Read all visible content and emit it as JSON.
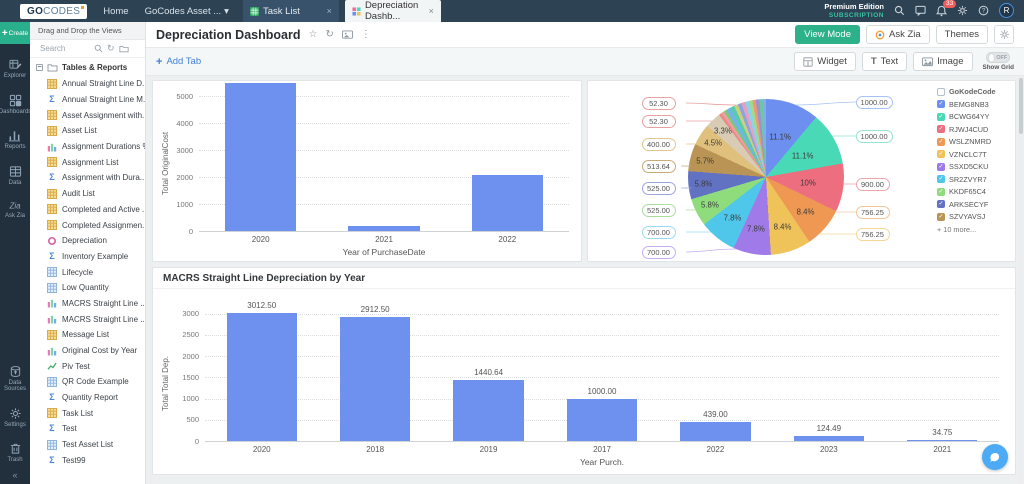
{
  "icons": {
    "caret_down": "▾",
    "close": "×",
    "star": "☆",
    "refresh": "↻",
    "kebab": "⋮",
    "plus": "+",
    "check": "✓",
    "collapse": "«",
    "minus": "−",
    "question": "?",
    "text_t": "T"
  },
  "navbar": {
    "logo_go": "GO",
    "logo_codes": "CODES",
    "menu_home": "Home",
    "menu_workspace": "GoCodes Asset ...",
    "tab_task": "Task List",
    "tab_active": "Depreciation Dashb...",
    "premium_line1": "Premium Edition",
    "premium_line2": "SUBSCRIPTION",
    "badge_count": "33",
    "avatar_initial": "R"
  },
  "rail": {
    "create": "Create",
    "items": [
      {
        "label": "Explorer"
      },
      {
        "label": "Dashboards"
      },
      {
        "label": "Reports"
      },
      {
        "label": "Data"
      },
      {
        "label": "Ask Zia"
      }
    ],
    "bottom_items": [
      {
        "label": "Data Sources"
      },
      {
        "label": "Settings"
      },
      {
        "label": "Trash"
      }
    ]
  },
  "sidebar": {
    "header": "Drag and Drop the Views",
    "search_placeholder": "Search",
    "root": "Tables & Reports",
    "items": [
      {
        "label": "Annual Straight Line D...",
        "icon": "table-yellow"
      },
      {
        "label": "Annual Straight Line M...",
        "icon": "summary"
      },
      {
        "label": "Asset Assignment with...",
        "icon": "table-yellow"
      },
      {
        "label": "Asset List",
        "icon": "table-yellow"
      },
      {
        "label": "Assignment Durations %",
        "icon": "chart"
      },
      {
        "label": "Assignment List",
        "icon": "table-yellow"
      },
      {
        "label": "Assignment with Dura...",
        "icon": "summary"
      },
      {
        "label": "Audit List",
        "icon": "table-yellow"
      },
      {
        "label": "Completed and Active ...",
        "icon": "table-yellow"
      },
      {
        "label": "Completed Assignmen...",
        "icon": "table-yellow"
      },
      {
        "label": "Depreciation",
        "icon": "pivot"
      },
      {
        "label": "Inventory Example",
        "icon": "summary"
      },
      {
        "label": "Lifecycle",
        "icon": "table-blue"
      },
      {
        "label": "Low Quantity",
        "icon": "table-blue"
      },
      {
        "label": "MACRS Straight Line ...",
        "icon": "chart"
      },
      {
        "label": "MACRS Straight Line ...",
        "icon": "chart"
      },
      {
        "label": "Message List",
        "icon": "table-yellow"
      },
      {
        "label": "Original Cost by Year",
        "icon": "chart"
      },
      {
        "label": "Piv Test",
        "icon": "line"
      },
      {
        "label": "QR Code Example",
        "icon": "table-blue"
      },
      {
        "label": "Quantity Report",
        "icon": "summary"
      },
      {
        "label": "Task List",
        "icon": "table-yellow"
      },
      {
        "label": "Test",
        "icon": "summary"
      },
      {
        "label": "Test Asset List",
        "icon": "table-blue"
      },
      {
        "label": "Test99",
        "icon": "summary"
      }
    ]
  },
  "header": {
    "title": "Depreciation Dashboard",
    "btn_view_mode": "View Mode",
    "btn_ask_zia": "Ask Zia",
    "btn_themes": "Themes",
    "add_tab": "Add Tab",
    "btn_widget": "Widget",
    "btn_text": "Text",
    "btn_image": "Image",
    "toggle_state": "OFF",
    "toggle_label": "Show Grid"
  },
  "chart_data": [
    {
      "type": "bar",
      "name": "original-cost-by-year",
      "categories": [
        "2020",
        "2021",
        "2022"
      ],
      "values": [
        5500,
        190,
        2080
      ],
      "xlabel": "Year of PurchaseDate",
      "ylabel": "Total OriginalCost",
      "yticks": [
        0,
        1000,
        2000,
        3000,
        4000,
        5000
      ],
      "ylim": [
        0,
        5500
      ],
      "bar_color": "#6e90ee",
      "grid": true
    },
    {
      "type": "pie",
      "name": "gokodecode-pie",
      "legend_title": "GoKodeCode",
      "legend_more": "+ 10 more...",
      "slices": [
        {
          "label": "BEMG8NB3",
          "value": "1000.00",
          "pct": 11.1,
          "pct_label": "11.1%",
          "color": "#6d8ff0"
        },
        {
          "label": "BCWG64YY",
          "value": "1000.00",
          "pct": 11.1,
          "pct_label": "11.1%",
          "color": "#4ad9b6"
        },
        {
          "label": "RJWJ4CUD",
          "value": "900.00",
          "pct": 10,
          "pct_label": "10%",
          "color": "#ed6e7e"
        },
        {
          "label": "WSLZNMRD",
          "value": "756.25",
          "pct": 8.4,
          "pct_label": "8.4%",
          "color": "#ef9854"
        },
        {
          "label": "VZNCLC7T",
          "value": "756.25",
          "pct": 8.4,
          "pct_label": "8.4%",
          "color": "#efc35a"
        },
        {
          "label": "SSXD5CKU",
          "value": "700.00",
          "pct": 7.8,
          "pct_label": "7.8%",
          "color": "#9f7ae8"
        },
        {
          "label": "SR2ZVYR7",
          "value": "700.00",
          "pct": 7.8,
          "pct_label": "7.8%",
          "color": "#4fc7ea"
        },
        {
          "label": "KKDF65C4",
          "value": "525.00",
          "pct": 5.8,
          "pct_label": "5.8%",
          "color": "#8edc7c"
        },
        {
          "label": "ARKSECYF",
          "value": "525.00",
          "pct": 5.8,
          "pct_label": "5.8%",
          "color": "#6272c2"
        },
        {
          "label": "SZVYAVSJ",
          "value": "513.64",
          "pct": 5.7,
          "pct_label": "5.7%",
          "color": "#b99454"
        },
        {
          "value": "400.00",
          "pct": 4.5,
          "pct_label": "4.5%",
          "color": "#dfc07d"
        },
        {
          "pct": 3.3,
          "pct_label": "3.3%",
          "color": "#d8cdb4"
        },
        {
          "value": "52.30",
          "pct": 0.6,
          "color": "#e98b8b"
        },
        {
          "value": "52.30",
          "pct": 0.6,
          "color": "#ef9f9f"
        },
        {
          "pct": 0.6,
          "color": "#7bc97b"
        },
        {
          "pct": 0.9,
          "color": "#74b3e3"
        },
        {
          "pct": 0.9,
          "color": "#57cbb0"
        },
        {
          "pct": 0.8,
          "color": "#c9d27a"
        },
        {
          "pct": 0.8,
          "color": "#8fa3e0"
        },
        {
          "pct": 0.8,
          "color": "#e6a1c2"
        },
        {
          "pct": 0.8,
          "color": "#88d4e8"
        },
        {
          "pct": 0.7,
          "color": "#a4d98b"
        },
        {
          "pct": 0.7,
          "color": "#e89b72"
        },
        {
          "pct": 0.7,
          "color": "#9b8fd6"
        },
        {
          "pct": 0.7,
          "color": "#6fc6a3"
        },
        {
          "pct": 0.7,
          "color": "#7fb0e8"
        }
      ],
      "callouts_left": [
        {
          "text": "52.30",
          "color": "#e8a0a0",
          "y": 16
        },
        {
          "text": "52.30",
          "color": "#e8a0a0",
          "y": 34
        },
        {
          "text": "400.00",
          "color": "#e2c78e",
          "y": 57
        },
        {
          "text": "513.64",
          "color": "#c9ab7a",
          "y": 79
        },
        {
          "text": "525.00",
          "color": "#9aa6d9",
          "y": 101
        },
        {
          "text": "525.00",
          "color": "#a8dd9a",
          "y": 123
        },
        {
          "text": "700.00",
          "color": "#9adcef",
          "y": 145
        },
        {
          "text": "700.00",
          "color": "#c4aef0",
          "y": 165
        }
      ],
      "callouts_right": [
        {
          "text": "1000.00",
          "color": "#a8c0f5",
          "y": 15
        },
        {
          "text": "1000.00",
          "color": "#93e5cf",
          "y": 49
        },
        {
          "text": "900.00",
          "color": "#f0a3ad",
          "y": 97
        },
        {
          "text": "756.25",
          "color": "#f5c49a",
          "y": 125
        },
        {
          "text": "756.25",
          "color": "#f2d795",
          "y": 147
        }
      ]
    },
    {
      "type": "bar",
      "name": "macrs-by-year",
      "title": "MACRS Straight Line Depreciation by Year",
      "categories": [
        "2020",
        "2018",
        "2019",
        "2017",
        "2022",
        "2023",
        "2021"
      ],
      "values": [
        3012.5,
        2912.5,
        1440.64,
        1000.0,
        439.0,
        124.49,
        34.75
      ],
      "bar_labels": [
        "3012.50",
        "2912.50",
        "1440.64",
        "1000.00",
        "439.00",
        "124.49",
        "34.75"
      ],
      "xlabel": "Year Purch.",
      "ylabel": "Total Total Dep.",
      "yticks": [
        0,
        500,
        1000,
        1500,
        2000,
        2500,
        3000
      ],
      "ylim": [
        0,
        3200
      ],
      "bar_color": "#6e90ee",
      "grid": true
    }
  ]
}
